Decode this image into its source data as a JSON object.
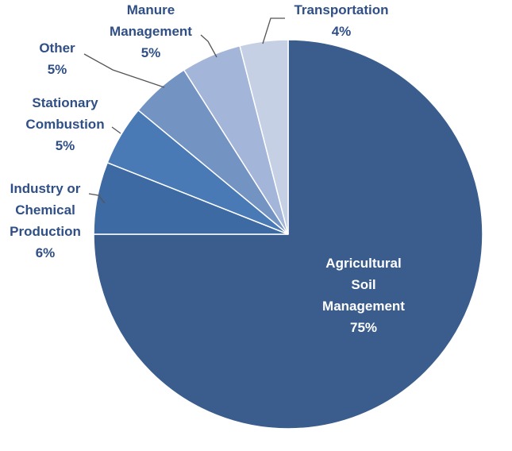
{
  "chart_data": {
    "type": "pie",
    "slices": [
      {
        "label": [
          "Agricultural",
          "Soil",
          "Management"
        ],
        "pct": "75%",
        "value": 75,
        "color": "#3a5d8d"
      },
      {
        "label": [
          "Industry or",
          "Chemical",
          "Production"
        ],
        "pct": "6%",
        "value": 6,
        "color": "#3d6aa3"
      },
      {
        "label": [
          "Stationary",
          "Combustion"
        ],
        "pct": "5%",
        "value": 5,
        "color": "#4a7ab6"
      },
      {
        "label": [
          "Other"
        ],
        "pct": "5%",
        "value": 5,
        "color": "#7393c3"
      },
      {
        "label": [
          "Manure",
          "Management"
        ],
        "pct": "5%",
        "value": 5,
        "color": "#a3b5d8"
      },
      {
        "label": [
          "Transportation"
        ],
        "pct": "4%",
        "value": 4,
        "color": "#c6d0e4"
      }
    ],
    "label_color": "#2f4f86"
  }
}
